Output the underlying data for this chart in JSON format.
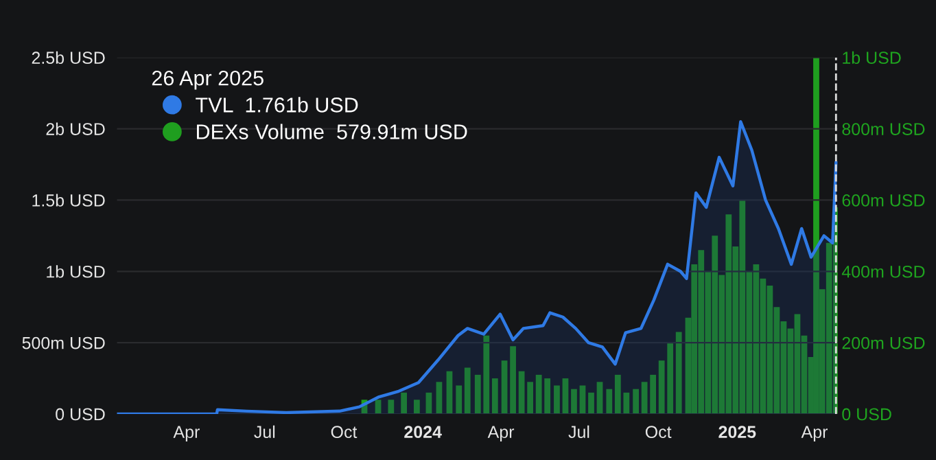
{
  "chart_data": {
    "type": "area",
    "legend_title": "26 Apr 2025",
    "legend": "top left",
    "grid": "y",
    "xlim": [
      "2023-01-10",
      "2025-04-28"
    ],
    "xticks": [
      {
        "value": "2023-04-01",
        "label": "Apr"
      },
      {
        "value": "2023-07-01",
        "label": "Jul"
      },
      {
        "value": "2023-10-01",
        "label": "Oct"
      },
      {
        "value": "2024-01-01",
        "label": "2024"
      },
      {
        "value": "2024-04-01",
        "label": "Apr"
      },
      {
        "value": "2024-07-01",
        "label": "Jul"
      },
      {
        "value": "2024-10-01",
        "label": "Oct"
      },
      {
        "value": "2025-01-01",
        "label": "2025"
      },
      {
        "value": "2025-04-01",
        "label": "Apr"
      }
    ],
    "ylim": [
      0,
      2500000000
    ],
    "yticks": [
      {
        "value": 0,
        "label": "0 USD"
      },
      {
        "value": 500000000,
        "label": "500m USD"
      },
      {
        "value": 1000000000,
        "label": "1b USD"
      },
      {
        "value": 1500000000,
        "label": "1.5b USD"
      },
      {
        "value": 2000000000,
        "label": "2b USD"
      },
      {
        "value": 2500000000,
        "label": "2.5b USD"
      }
    ],
    "y2lim": [
      0,
      1000000000
    ],
    "y2ticks": [
      {
        "value": 0,
        "label": "0 USD"
      },
      {
        "value": 200000000,
        "label": "200m USD"
      },
      {
        "value": 400000000,
        "label": "400m USD"
      },
      {
        "value": 600000000,
        "label": "600m USD"
      },
      {
        "value": 800000000,
        "label": "800m USD"
      },
      {
        "value": 1000000000,
        "label": "1b USD"
      }
    ],
    "ref_lines": [
      {
        "axis": "x",
        "value": "2025-04-26",
        "color": "#dddddd",
        "line_style": "dashed"
      }
    ],
    "series": [
      {
        "name": "DEXs Volume  579.91m USD",
        "type": "bar",
        "axis": "y2",
        "color": "#1f9e1f",
        "x": [
          "2023-10-25",
          "2023-11-10",
          "2023-11-25",
          "2023-12-10",
          "2023-12-25",
          "2024-01-08",
          "2024-01-20",
          "2024-02-01",
          "2024-02-12",
          "2024-02-22",
          "2024-03-05",
          "2024-03-15",
          "2024-03-25",
          "2024-04-05",
          "2024-04-15",
          "2024-04-25",
          "2024-05-05",
          "2024-05-15",
          "2024-05-25",
          "2024-06-05",
          "2024-06-15",
          "2024-06-25",
          "2024-07-05",
          "2024-07-15",
          "2024-07-25",
          "2024-08-05",
          "2024-08-15",
          "2024-08-25",
          "2024-09-05",
          "2024-09-15",
          "2024-09-25",
          "2024-10-05",
          "2024-10-15",
          "2024-10-25",
          "2024-11-05",
          "2024-11-12",
          "2024-11-20",
          "2024-11-28",
          "2024-12-06",
          "2024-12-14",
          "2024-12-22",
          "2024-12-30",
          "2025-01-07",
          "2025-01-15",
          "2025-01-23",
          "2025-01-31",
          "2025-02-08",
          "2025-02-16",
          "2025-02-24",
          "2025-03-04",
          "2025-03-12",
          "2025-03-20",
          "2025-03-28",
          "2025-04-03",
          "2025-04-10",
          "2025-04-18",
          "2025-04-26"
        ],
        "values": [
          40000000,
          40000000,
          40000000,
          60000000,
          40000000,
          60000000,
          90000000,
          120000000,
          80000000,
          130000000,
          110000000,
          220000000,
          100000000,
          150000000,
          190000000,
          120000000,
          90000000,
          110000000,
          100000000,
          80000000,
          100000000,
          70000000,
          80000000,
          60000000,
          90000000,
          70000000,
          110000000,
          60000000,
          70000000,
          90000000,
          110000000,
          150000000,
          200000000,
          230000000,
          270000000,
          420000000,
          460000000,
          400000000,
          500000000,
          390000000,
          560000000,
          470000000,
          600000000,
          400000000,
          420000000,
          380000000,
          360000000,
          300000000,
          260000000,
          240000000,
          280000000,
          220000000,
          160000000,
          1000000000,
          350000000,
          480000000,
          579910000
        ]
      },
      {
        "name": "TVL  1.761b USD",
        "color": "#2f7ae5",
        "x": [
          "2023-01-10",
          "2023-05-06",
          "2023-05-07",
          "2023-06-10",
          "2023-07-26",
          "2023-09-26",
          "2023-10-19",
          "2023-11-11",
          "2023-12-04",
          "2023-12-27",
          "2024-01-19",
          "2024-02-11",
          "2024-02-22",
          "2024-03-12",
          "2024-03-31",
          "2024-04-15",
          "2024-04-27",
          "2024-05-20",
          "2024-05-28",
          "2024-06-12",
          "2024-06-27",
          "2024-07-12",
          "2024-07-28",
          "2024-08-12",
          "2024-08-24",
          "2024-09-11",
          "2024-09-26",
          "2024-10-12",
          "2024-10-27",
          "2024-11-03",
          "2024-11-14",
          "2024-11-26",
          "2024-12-11",
          "2024-12-27",
          "2025-01-05",
          "2025-01-18",
          "2025-02-03",
          "2025-02-18",
          "2025-03-05",
          "2025-03-17",
          "2025-03-28",
          "2025-04-12",
          "2025-04-22",
          "2025-04-26"
        ],
        "values": [
          0,
          0,
          30000000,
          20000000,
          10000000,
          20000000,
          50000000,
          120000000,
          160000000,
          220000000,
          380000000,
          550000000,
          600000000,
          560000000,
          700000000,
          520000000,
          600000000,
          620000000,
          710000000,
          680000000,
          600000000,
          500000000,
          470000000,
          350000000,
          570000000,
          600000000,
          800000000,
          1050000000,
          1000000000,
          950000000,
          1550000000,
          1450000000,
          1800000000,
          1600000000,
          2050000000,
          1850000000,
          1500000000,
          1300000000,
          1050000000,
          1300000000,
          1100000000,
          1250000000,
          1200000000,
          1761000000
        ]
      }
    ]
  }
}
